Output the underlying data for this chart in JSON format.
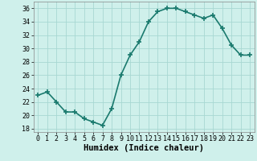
{
  "x": [
    0,
    1,
    2,
    3,
    4,
    5,
    6,
    7,
    8,
    9,
    10,
    11,
    12,
    13,
    14,
    15,
    16,
    17,
    18,
    19,
    20,
    21,
    22,
    23
  ],
  "y": [
    23,
    23.5,
    22,
    20.5,
    20.5,
    19.5,
    19,
    18.5,
    21,
    26,
    29,
    31,
    34,
    35.5,
    36,
    36,
    35.5,
    35,
    34.5,
    35,
    33,
    30.5,
    29,
    29
  ],
  "line_color": "#1a7a6e",
  "marker": "+",
  "marker_size": 4,
  "bg_color": "#cff0eb",
  "grid_color": "#a8d8d2",
  "xlabel": "Humidex (Indice chaleur)",
  "xlabel_fontsize": 7.5,
  "ylim": [
    17.5,
    37
  ],
  "xlim": [
    -0.5,
    23.5
  ],
  "yticks": [
    18,
    20,
    22,
    24,
    26,
    28,
    30,
    32,
    34,
    36
  ],
  "xticks": [
    0,
    1,
    2,
    3,
    4,
    5,
    6,
    7,
    8,
    9,
    10,
    11,
    12,
    13,
    14,
    15,
    16,
    17,
    18,
    19,
    20,
    21,
    22,
    23
  ],
  "tick_fontsize": 6,
  "linewidth": 1.2
}
